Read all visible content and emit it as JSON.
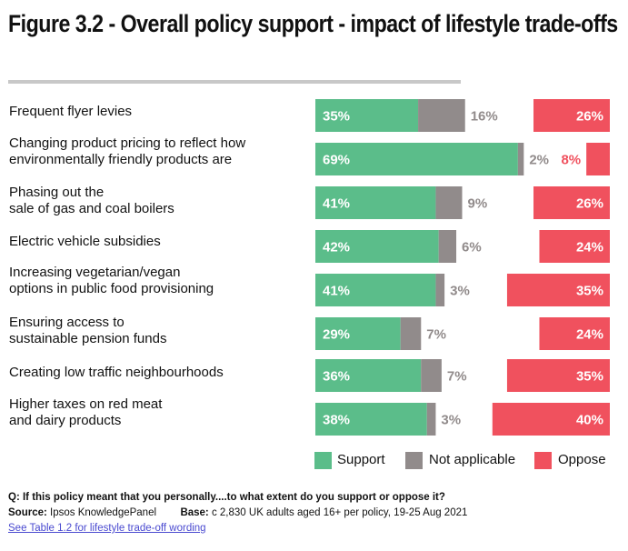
{
  "header": {
    "title": "Figure 3.2 - Overall policy support - impact of lifestyle trade-offs"
  },
  "chart_data": {
    "type": "bar",
    "orientation": "horizontal",
    "stacked": true,
    "title": "Figure 3.2 - Overall policy support - impact of lifestyle trade-offs",
    "categories": [
      [
        "Frequent flyer levies"
      ],
      [
        "Changing product pricing to reflect how",
        "environmentally friendly products are"
      ],
      [
        "Phasing out the",
        "sale of gas and coal boilers"
      ],
      [
        "Electric vehicle subsidies"
      ],
      [
        "Increasing vegetarian/vegan",
        "options in public food provisioning"
      ],
      [
        "Ensuring access to",
        "sustainable pension funds"
      ],
      [
        "Creating low traffic neighbourhoods"
      ],
      [
        "Higher taxes on red meat",
        "and dairy products"
      ]
    ],
    "series": [
      {
        "name": "Support",
        "color": "#5bbd8a",
        "values": [
          35,
          69,
          41,
          42,
          41,
          29,
          36,
          38
        ]
      },
      {
        "name": "Not applicable",
        "color": "#918b8b",
        "values": [
          16,
          2,
          9,
          6,
          3,
          7,
          7,
          3
        ]
      },
      {
        "name": "Oppose",
        "color": "#f0515e",
        "values": [
          26,
          8,
          26,
          24,
          35,
          24,
          35,
          40
        ],
        "aligned": "right"
      }
    ],
    "value_suffix": "%",
    "legend": "bottom-right",
    "xlabel": "",
    "ylabel": "",
    "grid": false
  },
  "legend": {
    "items": [
      {
        "label": "Support",
        "color": "#5bbd8a"
      },
      {
        "label": "Not applicable",
        "color": "#918b8b"
      },
      {
        "label": "Oppose",
        "color": "#f0515e"
      }
    ]
  },
  "footer": {
    "question": "Q: If this policy meant that you personally....to what extent do you support or oppose it?",
    "source_label": "Source:",
    "source_value": "Ipsos KnowledgePanel",
    "base_label": "Base:",
    "base_value": "c 2,830 UK adults aged 16+ per policy, 19-25 Aug 2021",
    "link_text": "See Table 1.2 for lifestyle trade-off wording"
  }
}
